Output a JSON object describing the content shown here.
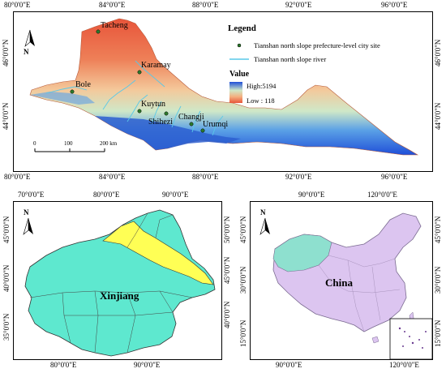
{
  "top_map": {
    "lon_ticks": [
      "80°0'0\"E",
      "84°0'0\"E",
      "88°0'0\"E",
      "92°0'0\"E",
      "96°0'0\"E"
    ],
    "lat_ticks": [
      "46°0'0\"N",
      "44°0'0\"N"
    ],
    "cities": [
      "Tacheng",
      "Karamay",
      "Bole",
      "Kuytun",
      "Shihezi",
      "Changji",
      "Urumqi"
    ],
    "legend": {
      "title": "Legend",
      "city_site": "Tianshan north slope prefecture-level city site",
      "river": "Tianshan north slope river",
      "value_title": "Value",
      "high": "High:5194",
      "low": "Low : 118"
    },
    "scale": {
      "zero": "0",
      "mid": "100",
      "end": "200 km"
    },
    "north": "N",
    "colors": {
      "high": "#1f4fd8",
      "low": "#e8553a",
      "river": "#58c8e8",
      "city": "#2c7a2c"
    }
  },
  "xinjiang_map": {
    "lon_top": [
      "70°0'0\"E",
      "80°0'0\"E",
      "90°0'0\"E"
    ],
    "lon_bottom": [
      "80°0'0\"E",
      "90°0'0\"E"
    ],
    "lat_left": [
      "45°0'0\"N",
      "40°0'0\"N",
      "35°0'0\"N"
    ],
    "lat_right": [
      "50°0'0\"N",
      "45°0'0\"N",
      "40°0'0\"N"
    ],
    "label": "Xinjiang",
    "north": "N",
    "colors": {
      "region": "#5ee8cf",
      "highlight": "#ffff55"
    }
  },
  "china_map": {
    "lon_top": [
      "90°0'0\"E",
      "120°0'0\"E"
    ],
    "lon_bottom": [
      "90°0'0\"E",
      "120°0'0\"E"
    ],
    "lat_left": [
      "45°0'0\"N",
      "30°0'0\"N",
      "15°0'0\"N"
    ],
    "lat_right": [
      "45°0'0\"N",
      "30°0'0\"N",
      "15°0'0\"N"
    ],
    "label": "China",
    "north": "N",
    "colors": {
      "china": "#dcc5f0",
      "xinjiang": "#8ee0cf"
    }
  }
}
